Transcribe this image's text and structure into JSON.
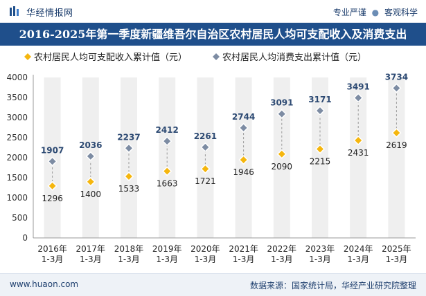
{
  "header": {
    "brand": "华经情报网",
    "tagline_left": "专业严谨",
    "tagline_sep": "●",
    "tagline_right": "客观科学"
  },
  "title": "2016-2025年第一季度新疆维吾尔自治区农村居民人均可支配收入及消费支出",
  "footer": {
    "website": "www.huaon.com",
    "source": "数据来源：国家统计局，华经产业研究院整理"
  },
  "colors": {
    "title_bg": "#1f4f8b",
    "income": "#f5b60e",
    "consumption": "#7d8ca3",
    "column_bg": "#efefef",
    "label_color": "#2d4a73"
  },
  "chart_data": {
    "type": "scatter",
    "categories": [
      "2016年\n1-3月",
      "2017年\n1-3月",
      "2018年\n1-3月",
      "2019年\n1-3月",
      "2020年\n1-3月",
      "2021年\n1-3月",
      "2022年\n1-3月",
      "2023年\n1-3月",
      "2024年\n1-3月",
      "2025年\n1-3月"
    ],
    "series": [
      {
        "name": "农村居民人均可支配收入累计值（元）",
        "marker": "diamond",
        "values": [
          1296,
          1400,
          1533,
          1663,
          1721,
          1946,
          2090,
          2215,
          2431,
          2619
        ]
      },
      {
        "name": "农村居民人均消费支出累计值（元）",
        "marker": "diamond",
        "values": [
          1907,
          2036,
          2237,
          2412,
          2261,
          2744,
          3091,
          3171,
          3491,
          3734
        ]
      }
    ],
    "ylim": [
      0,
      4000
    ],
    "yticks": [
      0,
      500,
      1000,
      1500,
      2000,
      2500,
      3000,
      3500,
      4000
    ],
    "legend_position": "top-left",
    "connector": "dashed"
  }
}
